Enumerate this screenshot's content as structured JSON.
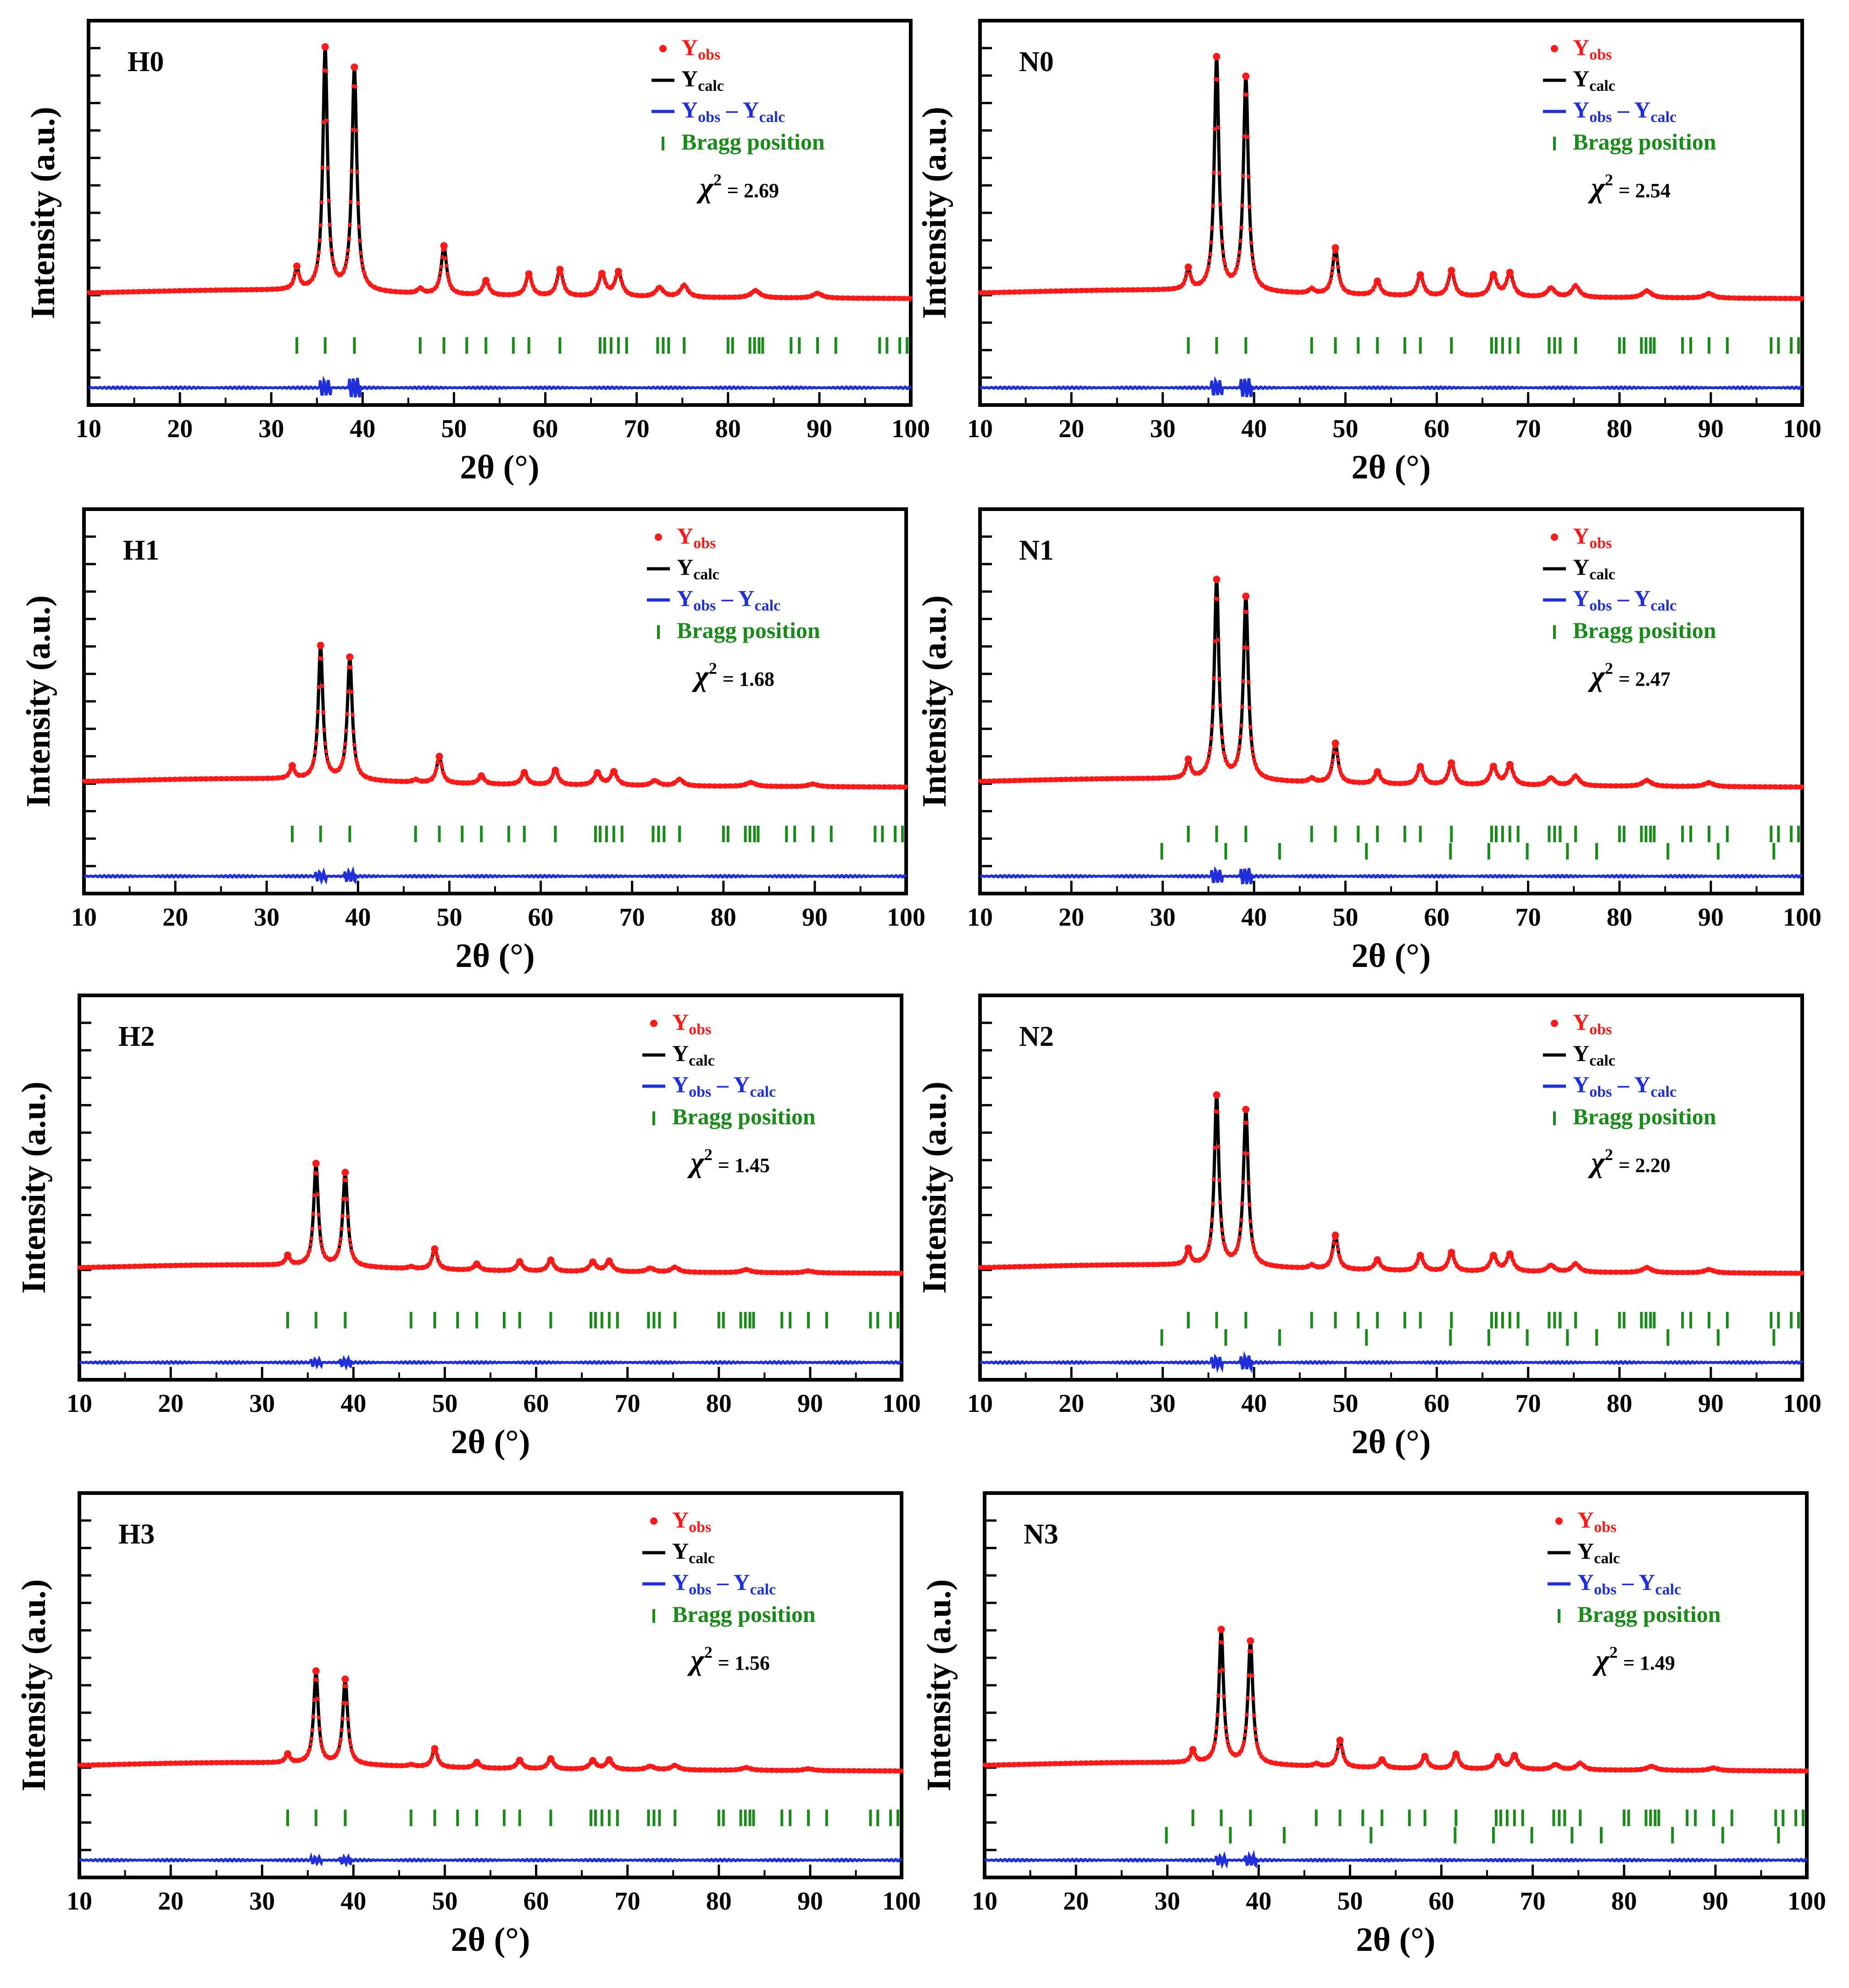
{
  "figure": {
    "x_ticks": [
      10,
      20,
      30,
      40,
      50,
      60,
      70,
      80,
      90,
      100
    ],
    "colors": {
      "obs": "#ff1a1a",
      "calc": "#000000",
      "diff": "#1f2fd9",
      "bragg": "#1a8a1a",
      "axis": "#000000"
    }
  },
  "legend": {
    "obs_main": "Y",
    "obs_sub": "obs",
    "calc_main": "Y",
    "calc_sub": "calc",
    "diff_main1": "Y",
    "diff_sub1": "obs",
    "diff_minus": " – ",
    "diff_main2": "Y",
    "diff_sub2": "calc",
    "bragg": "Bragg position",
    "chi_label": "χ",
    "chi_sup": "2"
  },
  "chart_data": [
    {
      "type": "line",
      "panel": "H0",
      "title": "H0",
      "xlabel": "2θ (°)",
      "ylabel": "Intensity (a.u.)",
      "xlim": [
        10,
        100
      ],
      "chi2_text": "= 2.69",
      "chi2": 2.69,
      "scale": 1.0,
      "bragg_rows": 1,
      "series": [
        "Y_obs",
        "Y_calc",
        "Y_obs – Y_calc",
        "Bragg position"
      ]
    },
    {
      "type": "line",
      "panel": "N0",
      "title": "N0",
      "xlabel": "2θ (°)",
      "ylabel": "Intensity (a.u.)",
      "xlim": [
        10,
        100
      ],
      "chi2_text": "= 2.54",
      "chi2": 2.54,
      "scale": 0.96,
      "bragg_rows": 1,
      "series": [
        "Y_obs",
        "Y_calc",
        "Y_obs – Y_calc",
        "Bragg position"
      ]
    },
    {
      "type": "line",
      "panel": "H1",
      "title": "H1",
      "xlabel": "2θ (°)",
      "ylabel": "Intensity (a.u.)",
      "xlim": [
        10,
        100
      ],
      "chi2_text": "= 1.68",
      "chi2": 1.68,
      "scale": 0.55,
      "bragg_rows": 1,
      "series": [
        "Y_obs",
        "Y_calc",
        "Y_obs – Y_calc",
        "Bragg position"
      ]
    },
    {
      "type": "line",
      "panel": "N1",
      "title": "N1",
      "xlabel": "2θ (°)",
      "ylabel": "Intensity (a.u.)",
      "xlim": [
        10,
        100
      ],
      "chi2_text": "= 2.47",
      "chi2": 2.47,
      "scale": 0.82,
      "bragg_rows": 2,
      "series": [
        "Y_obs",
        "Y_calc",
        "Y_obs – Y_calc",
        "Bragg position"
      ]
    },
    {
      "type": "line",
      "panel": "H2",
      "title": "H2",
      "xlabel": "2θ (°)",
      "ylabel": "Intensity (a.u.)",
      "xlim": [
        10,
        100
      ],
      "chi2_text": "= 1.45",
      "chi2": 1.45,
      "scale": 0.42,
      "bragg_rows": 1,
      "series": [
        "Y_obs",
        "Y_calc",
        "Y_obs – Y_calc",
        "Bragg position"
      ]
    },
    {
      "type": "line",
      "panel": "N2",
      "title": "N2",
      "xlabel": "2θ (°)",
      "ylabel": "Intensity (a.u.)",
      "xlim": [
        10,
        100
      ],
      "chi2_text": "= 2.20",
      "chi2": 2.2,
      "scale": 0.7,
      "bragg_rows": 2,
      "series": [
        "Y_obs",
        "Y_calc",
        "Y_obs – Y_calc",
        "Bragg position"
      ]
    },
    {
      "type": "line",
      "panel": "H3",
      "title": "H3",
      "xlabel": "2θ (°)",
      "ylabel": "Intensity (a.u.)",
      "xlim": [
        10,
        100
      ],
      "chi2_text": "= 1.56",
      "chi2": 1.56,
      "scale": 0.38,
      "bragg_rows": 1,
      "series": [
        "Y_obs",
        "Y_calc",
        "Y_obs – Y_calc",
        "Bragg position"
      ]
    },
    {
      "type": "line",
      "panel": "N3",
      "title": "N3",
      "xlabel": "2θ (°)",
      "ylabel": "Intensity (a.u.)",
      "xlim": [
        10,
        100
      ],
      "chi2_text": "= 1.49",
      "chi2": 1.49,
      "scale": 0.55,
      "bragg_rows": 2,
      "series": [
        "Y_obs",
        "Y_calc",
        "Y_obs – Y_calc",
        "Bragg position"
      ]
    }
  ],
  "peaks": [
    {
      "pos": 32.8,
      "h": 0.09,
      "w": 0.3
    },
    {
      "pos": 35.9,
      "h": 1.0,
      "w": 0.3
    },
    {
      "pos": 39.1,
      "h": 0.92,
      "w": 0.32
    },
    {
      "pos": 46.3,
      "h": 0.02,
      "w": 0.35
    },
    {
      "pos": 48.9,
      "h": 0.2,
      "w": 0.35
    },
    {
      "pos": 53.5,
      "h": 0.06,
      "w": 0.4
    },
    {
      "pos": 58.2,
      "h": 0.09,
      "w": 0.4
    },
    {
      "pos": 61.6,
      "h": 0.11,
      "w": 0.4
    },
    {
      "pos": 66.2,
      "h": 0.09,
      "w": 0.45
    },
    {
      "pos": 68.0,
      "h": 0.1,
      "w": 0.45
    },
    {
      "pos": 72.5,
      "h": 0.04,
      "w": 0.5
    },
    {
      "pos": 75.2,
      "h": 0.05,
      "w": 0.5
    },
    {
      "pos": 83.0,
      "h": 0.03,
      "w": 0.6
    },
    {
      "pos": 89.8,
      "h": 0.02,
      "w": 0.6
    }
  ],
  "bragg_primary": [
    32.8,
    35.9,
    39.1,
    46.3,
    48.9,
    51.4,
    53.5,
    56.5,
    58.2,
    61.6,
    66.0,
    66.5,
    67.2,
    68.0,
    68.9,
    72.3,
    72.9,
    73.5,
    75.2,
    80.0,
    80.5,
    82.4,
    82.9,
    83.4,
    83.8,
    86.9,
    87.8,
    89.8,
    91.8,
    96.6,
    97.4,
    98.8,
    99.6
  ],
  "bragg_secondary": [
    29.9,
    36.9,
    42.8,
    52.3,
    61.5,
    65.7,
    69.9,
    74.3,
    77.5,
    85.3,
    90.8,
    96.9
  ]
}
